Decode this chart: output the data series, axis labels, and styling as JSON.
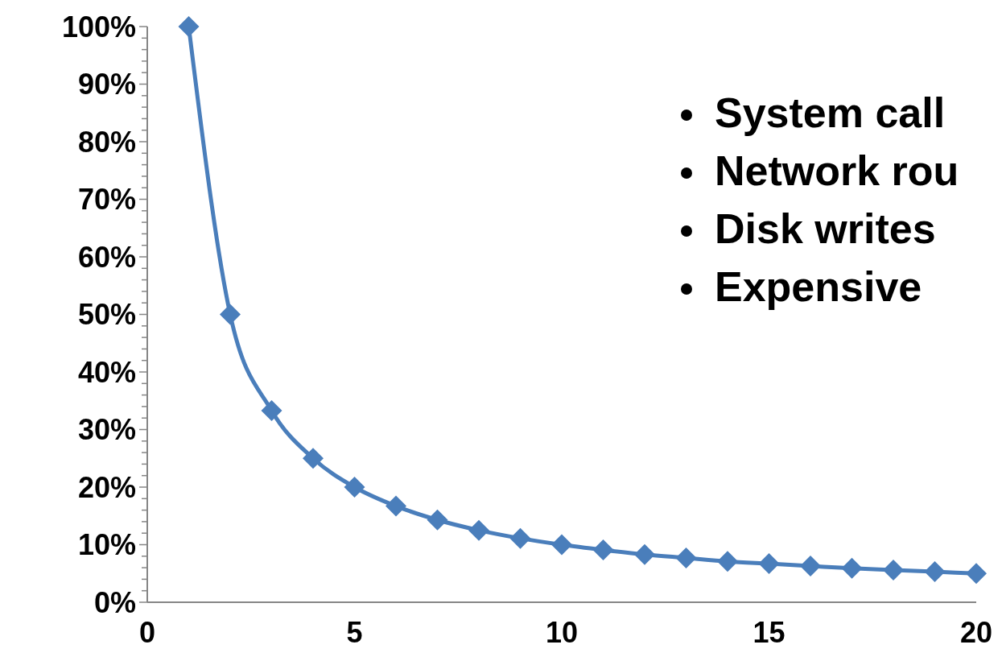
{
  "chart_data": {
    "type": "line",
    "x": [
      1,
      2,
      3,
      4,
      5,
      6,
      7,
      8,
      9,
      10,
      11,
      12,
      13,
      14,
      15,
      16,
      17,
      18,
      19,
      20
    ],
    "series": [
      {
        "color": "#4a7ebb",
        "values": [
          100,
          50,
          33.3,
          25,
          20,
          16.7,
          14.3,
          12.5,
          11.1,
          10,
          9.1,
          8.3,
          7.7,
          7.1,
          6.7,
          6.3,
          5.9,
          5.6,
          5.3,
          5
        ]
      }
    ],
    "xlim": [
      0,
      20
    ],
    "xticks": [
      0,
      5,
      10,
      15,
      20
    ],
    "ylim": [
      0,
      100
    ],
    "yticks": [
      {
        "value": 0,
        "label": "0%"
      },
      {
        "value": 2,
        "label": null
      },
      {
        "value": 4,
        "label": null
      },
      {
        "value": 6,
        "label": null
      },
      {
        "value": 8,
        "label": null
      },
      {
        "value": 10,
        "label": "10%"
      },
      {
        "value": 12,
        "label": null
      },
      {
        "value": 14,
        "label": null
      },
      {
        "value": 16,
        "label": null
      },
      {
        "value": 18,
        "label": null
      },
      {
        "value": 20,
        "label": "20%"
      },
      {
        "value": 22,
        "label": null
      },
      {
        "value": 24,
        "label": null
      },
      {
        "value": 26,
        "label": null
      },
      {
        "value": 28,
        "label": null
      },
      {
        "value": 30,
        "label": "30%"
      },
      {
        "value": 32,
        "label": null
      },
      {
        "value": 34,
        "label": null
      },
      {
        "value": 36,
        "label": null
      },
      {
        "value": 38,
        "label": null
      },
      {
        "value": 40,
        "label": "40%"
      },
      {
        "value": 42,
        "label": null
      },
      {
        "value": 44,
        "label": null
      },
      {
        "value": 46,
        "label": null
      },
      {
        "value": 48,
        "label": null
      },
      {
        "value": 50,
        "label": "50%"
      },
      {
        "value": 52,
        "label": null
      },
      {
        "value": 54,
        "label": null
      },
      {
        "value": 56,
        "label": null
      },
      {
        "value": 58,
        "label": null
      },
      {
        "value": 60,
        "label": "60%"
      },
      {
        "value": 62,
        "label": null
      },
      {
        "value": 64,
        "label": null
      },
      {
        "value": 66,
        "label": null
      },
      {
        "value": 68,
        "label": null
      },
      {
        "value": 70,
        "label": "70%"
      },
      {
        "value": 72,
        "label": null
      },
      {
        "value": 74,
        "label": null
      },
      {
        "value": 76,
        "label": null
      },
      {
        "value": 78,
        "label": null
      },
      {
        "value": 80,
        "label": "80%"
      },
      {
        "value": 82,
        "label": null
      },
      {
        "value": 84,
        "label": null
      },
      {
        "value": 86,
        "label": null
      },
      {
        "value": 88,
        "label": null
      },
      {
        "value": 90,
        "label": "90%"
      },
      {
        "value": 92,
        "label": null
      },
      {
        "value": 94,
        "label": null
      },
      {
        "value": 96,
        "label": null
      },
      {
        "value": 98,
        "label": null
      },
      {
        "value": 100,
        "label": "100%"
      }
    ],
    "grid": false,
    "marker": "diamond",
    "line_style": "solid",
    "annotations": [
      "System call",
      "Network rou",
      "Disk writes",
      "Expensive"
    ]
  }
}
